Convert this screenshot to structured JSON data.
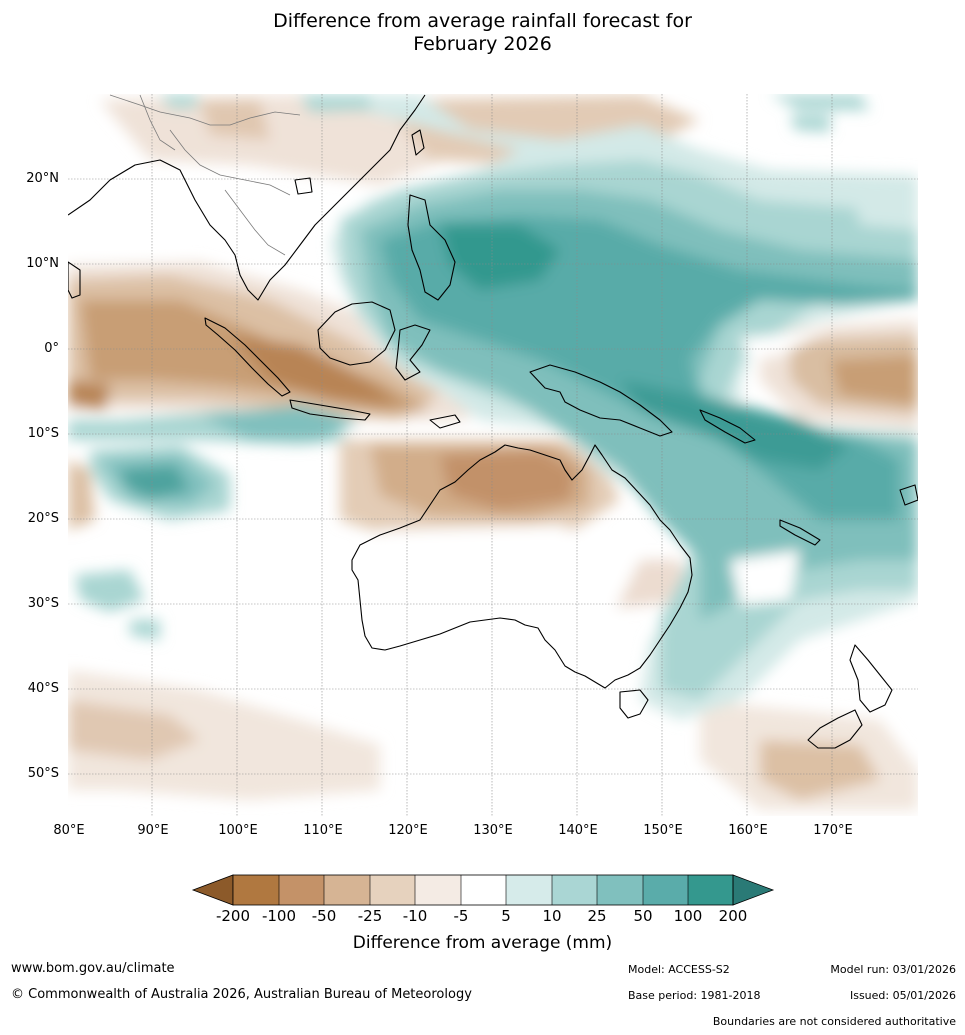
{
  "title": {
    "line1": "Difference from average rainfall forecast for",
    "line2": "February 2026"
  },
  "map": {
    "latitude_labels": [
      "20°N",
      "10°N",
      "0°",
      "10°S",
      "20°S",
      "30°S",
      "40°S",
      "50°S"
    ],
    "longitude_labels": [
      "80°E",
      "90°E",
      "100°E",
      "110°E",
      "120°E",
      "130°E",
      "140°E",
      "150°E",
      "160°E",
      "170°E"
    ],
    "lon_range": [
      80,
      180
    ],
    "lat_range": [
      -55,
      30
    ]
  },
  "colorbar": {
    "ticks": [
      "-200",
      "-100",
      "-50",
      "-25",
      "-10",
      "-5",
      "5",
      "10",
      "25",
      "50",
      "100",
      "200"
    ],
    "colors": [
      "#8c5a2a",
      "#b07840",
      "#c49268",
      "#d6b494",
      "#e6d2be",
      "#f4ebe4",
      "#ffffff",
      "#d6ebea",
      "#aad6d4",
      "#80c0be",
      "#5aacaa",
      "#34988e",
      "#2a7a76"
    ],
    "label": "Difference from average (mm)"
  },
  "footer": {
    "url": "www.bom.gov.au/climate",
    "copyright": "© Commonwealth of Australia 2026, Australian Bureau of Meteorology",
    "model": "Model: ACCESS-S2",
    "base_period": "Base period: 1981-2018",
    "model_run": "Model run: 03/01/2026",
    "issued": "Issued: 05/01/2026",
    "disclaimer": "Boundaries are not considered authoritative"
  }
}
